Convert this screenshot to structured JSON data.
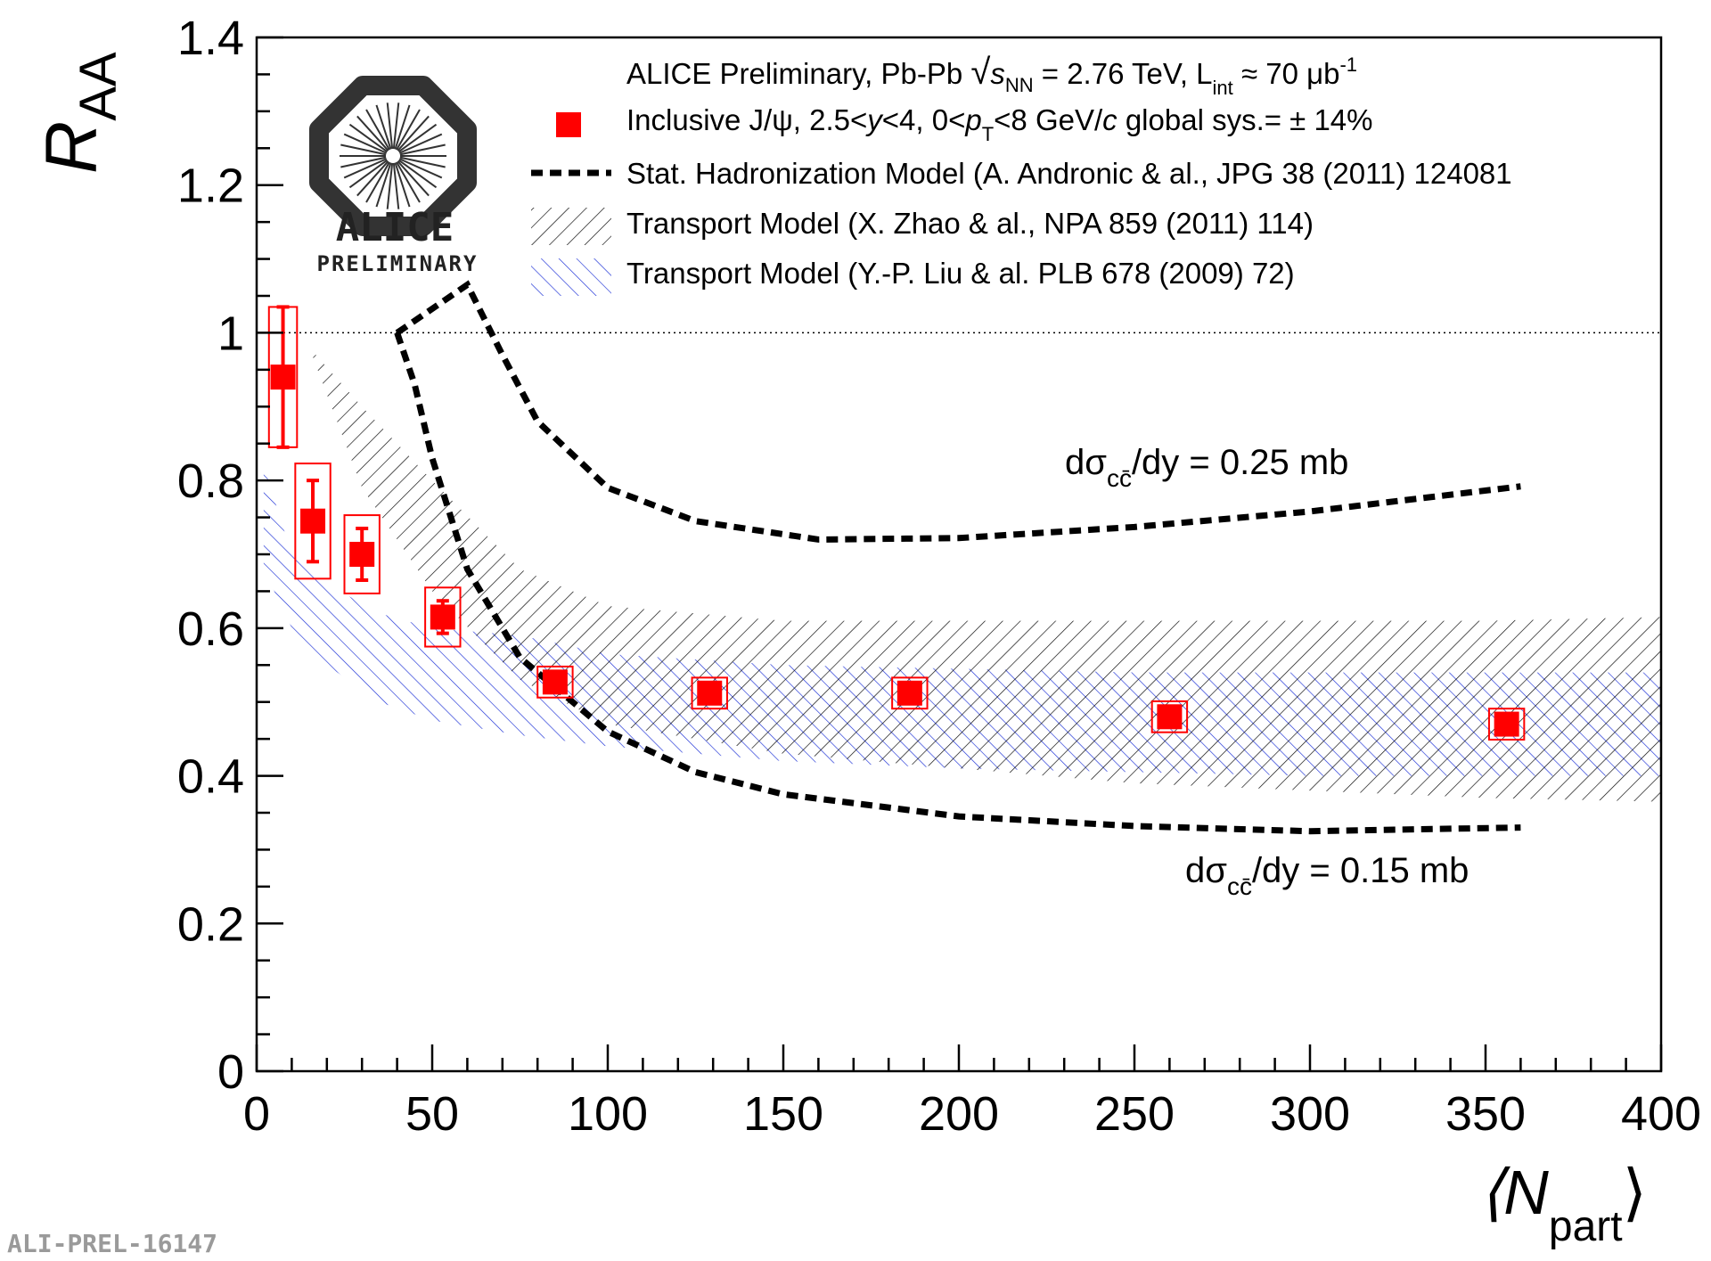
{
  "chart_data": {
    "type": "scatter",
    "title": "",
    "ylabel_main": "R",
    "ylabel_sub": "AA",
    "xlabel_main": "⟨N",
    "xlabel_sub": "part",
    "xlabel_close": "⟩",
    "xlim": [
      0,
      400
    ],
    "ylim": [
      0,
      1.4
    ],
    "x_ticks": [
      0,
      50,
      100,
      150,
      200,
      250,
      300,
      350,
      400
    ],
    "x_tick_labels": [
      "0",
      "50",
      "100",
      "150",
      "200",
      "250",
      "300",
      "350",
      "400"
    ],
    "y_ticks": [
      0,
      0.2,
      0.4,
      0.6,
      0.8,
      1,
      1.2,
      1.4
    ],
    "y_tick_labels": [
      "0",
      "0.2",
      "0.4",
      "0.6",
      "0.8",
      "1",
      "1.2",
      "1.4"
    ],
    "reference_line_y": 1,
    "data_series": {
      "name": "Inclusive J/ψ",
      "color": "#ff0000",
      "points": [
        {
          "x": 7.5,
          "y": 0.94,
          "stat_err": 0.095,
          "sys_err": 0.095,
          "box_halfwidth_x": 4
        },
        {
          "x": 16,
          "y": 0.745,
          "stat_err": 0.055,
          "sys_err": 0.078,
          "box_halfwidth_x": 5
        },
        {
          "x": 30,
          "y": 0.7,
          "stat_err": 0.035,
          "sys_err": 0.053,
          "box_halfwidth_x": 5
        },
        {
          "x": 53,
          "y": 0.615,
          "stat_err": 0.022,
          "sys_err": 0.04,
          "box_halfwidth_x": 5
        },
        {
          "x": 85,
          "y": 0.527,
          "stat_err": 0.013,
          "sys_err": 0.021,
          "box_halfwidth_x": 5
        },
        {
          "x": 129,
          "y": 0.512,
          "stat_err": 0.012,
          "sys_err": 0.021,
          "box_halfwidth_x": 5
        },
        {
          "x": 186,
          "y": 0.512,
          "stat_err": 0.012,
          "sys_err": 0.021,
          "box_halfwidth_x": 5
        },
        {
          "x": 260,
          "y": 0.48,
          "stat_err": 0.012,
          "sys_err": 0.021,
          "box_halfwidth_x": 5
        },
        {
          "x": 356,
          "y": 0.47,
          "stat_err": 0.012,
          "sys_err": 0.021,
          "box_halfwidth_x": 5
        }
      ]
    },
    "stat_hadronization_upper": {
      "name": "Stat. Hadronization Model, dσcc̄/dy = 0.25 mb",
      "x": [
        40,
        60,
        70,
        80,
        100,
        125,
        160,
        200,
        250,
        300,
        360
      ],
      "y": [
        1.0,
        1.065,
        0.97,
        0.88,
        0.79,
        0.745,
        0.72,
        0.722,
        0.737,
        0.758,
        0.792
      ]
    },
    "stat_hadronization_lower": {
      "name": "Stat. Hadronization Model, dσcc̄/dy = 0.15 mb",
      "x": [
        40,
        45,
        50,
        60,
        75,
        100,
        125,
        150,
        200,
        250,
        300,
        360
      ],
      "y": [
        1.0,
        0.93,
        0.83,
        0.68,
        0.56,
        0.46,
        0.405,
        0.375,
        0.345,
        0.332,
        0.325,
        0.33
      ]
    },
    "transport_zhao_band": {
      "name": "Transport Model (X. Zhao & al.)",
      "color": "#000000",
      "x": [
        15,
        30,
        50,
        75,
        100,
        150,
        200,
        250,
        300,
        350,
        400
      ],
      "upper": [
        0.98,
        0.9,
        0.8,
        0.68,
        0.63,
        0.61,
        0.61,
        0.61,
        0.61,
        0.61,
        0.615
      ],
      "lower": [
        0.98,
        0.79,
        0.65,
        0.53,
        0.47,
        0.43,
        0.41,
        0.39,
        0.38,
        0.37,
        0.365
      ]
    },
    "transport_liu_band": {
      "name": "Transport Model (Y.-P. Liu & al.)",
      "color": "#1a2fd6",
      "x": [
        2,
        10,
        20,
        35,
        50,
        75,
        100,
        150,
        200,
        250,
        300,
        350,
        400
      ],
      "upper": [
        0.82,
        0.7,
        0.66,
        0.62,
        0.6,
        0.59,
        0.565,
        0.55,
        0.545,
        0.54,
        0.54,
        0.54,
        0.54
      ],
      "lower": [
        0.68,
        0.6,
        0.55,
        0.5,
        0.475,
        0.455,
        0.44,
        0.42,
        0.41,
        0.405,
        0.4,
        0.4,
        0.4
      ]
    },
    "annotations": {
      "upper_curve": {
        "prefix": "dσ",
        "sub": "cc̄",
        "suffix": "/dy = 0.25 mb",
        "x": 230,
        "y": 0.8
      },
      "lower_curve": {
        "prefix": "dσ",
        "sub": "cc̄",
        "suffix": "/dy = 0.15 mb",
        "x": 265,
        "y": 0.27
      }
    },
    "legend": {
      "position": "top-right",
      "entries": [
        {
          "symbol": "none",
          "text": "ALICE Preliminary, Pb-Pb √s_NN = 2.76 TeV, L_int ≈ 70 μb⁻¹"
        },
        {
          "symbol": "red-square",
          "text": "Inclusive J/ψ, 2.5<y<4, 0<p_T<8 GeV/c   global sys.= ± 14%"
        },
        {
          "symbol": "dashed-line",
          "text": "Stat. Hadronization Model (A. Andronic & al., JPG 38 (2011) 124081"
        },
        {
          "symbol": "black-hatch",
          "text": "Transport Model (X. Zhao & al., NPA 859 (2011) 114)"
        },
        {
          "symbol": "blue-hatch",
          "text": "Transport Model (Y.-P. Liu & al. PLB 678 (2009) 72)"
        }
      ]
    }
  },
  "legend_text": {
    "l1_a": "ALICE Preliminary, Pb-Pb ",
    "l1_s": "s",
    "l1_nn": "NN",
    "l1_b": " = 2.76 TeV, L",
    "l1_int": "int",
    "l1_c": " ≈ 70 μb",
    "l1_exp": "-1",
    "l2_a": "Inclusive J/ψ, 2.5<",
    "l2_y": "y",
    "l2_b": "<4, 0<",
    "l2_p": "p",
    "l2_T": "T",
    "l2_c": "<8 GeV/",
    "l2_cc": "c",
    "l2_d": "   global sys.= ± 14%",
    "l3": "Stat. Hadronization Model (A. Andronic & al., JPG 38 (2011) 124081",
    "l4": "Transport Model (X. Zhao & al., NPA 859 (2011) 114)",
    "l5": "Transport Model (Y.-P. Liu & al. PLB 678 (2009) 72)"
  },
  "logo": {
    "line1": "ALICE",
    "line2": "PRELIMINARY"
  },
  "footer_id": "ALI-PREL-16147",
  "colors": {
    "data": "#ff0000",
    "zhao_hatch": "#000000",
    "liu_hatch": "#1a2fd6"
  }
}
